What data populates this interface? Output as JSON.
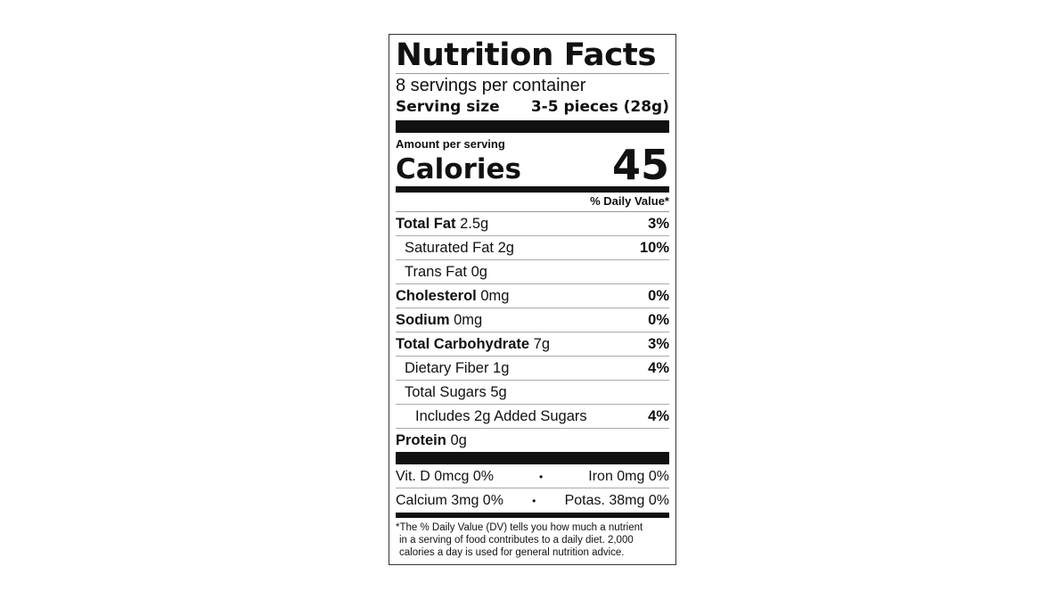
{
  "title": "Nutrition Facts",
  "servings_per_container": "8 servings per container",
  "serving_size": {
    "label": "Serving size",
    "value": "3-5 pieces (28g)"
  },
  "amount_per_serving": "Amount per serving",
  "calories": {
    "label": "Calories",
    "value": "45"
  },
  "daily_value_header": "% Daily Value*",
  "nutrients": [
    {
      "name": "Total Fat",
      "amount": "2.5g",
      "dv": "3%",
      "bold": true,
      "indent": 0
    },
    {
      "name": "Saturated Fat",
      "amount": "2g",
      "dv": "10%",
      "bold": false,
      "indent": 1
    },
    {
      "name": "Trans Fat",
      "amount": "0g",
      "dv": "",
      "bold": false,
      "indent": 1
    },
    {
      "name": "Cholesterol",
      "amount": "0mg",
      "dv": "0%",
      "bold": true,
      "indent": 0
    },
    {
      "name": "Sodium",
      "amount": "0mg",
      "dv": "0%",
      "bold": true,
      "indent": 0
    },
    {
      "name": "Total Carbohydrate",
      "amount": "7g",
      "dv": "3%",
      "bold": true,
      "indent": 0
    },
    {
      "name": "Dietary Fiber",
      "amount": "1g",
      "dv": "4%",
      "bold": false,
      "indent": 1
    },
    {
      "name": "Total Sugars",
      "amount": "5g",
      "dv": "",
      "bold": false,
      "indent": 1
    },
    {
      "name": "Includes 2g Added Sugars",
      "amount": "",
      "dv": "4%",
      "bold": false,
      "indent": 2
    },
    {
      "name": "Protein",
      "amount": "0g",
      "dv": "",
      "bold": true,
      "indent": 0
    }
  ],
  "vitamins": [
    {
      "left": "Vit. D 0mcg 0%",
      "sep": "•",
      "right": "Iron 0mg 0%"
    },
    {
      "left": "Calcium 3mg 0%",
      "sep": "•",
      "right": "Potas. 38mg 0%"
    }
  ],
  "footnote": [
    "*The % Daily Value (DV) tells you how much a nutrient",
    "in a serving of food contributes to a daily diet. 2,000",
    "calories a day is used for general nutrition advice."
  ]
}
